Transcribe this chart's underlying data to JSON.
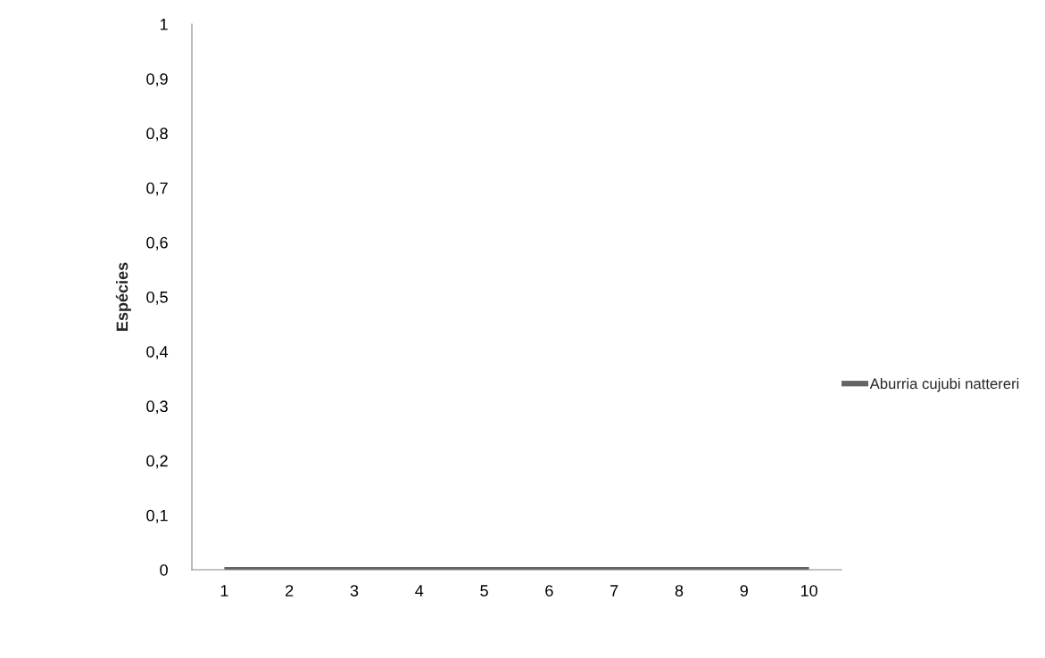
{
  "chart_data": {
    "type": "line",
    "ylabel": "Espécies",
    "categories": [
      "1",
      "2",
      "3",
      "4",
      "5",
      "6",
      "7",
      "8",
      "9",
      "10"
    ],
    "series": [
      {
        "name": "Aburria cujubi nattereri",
        "color": "#646464",
        "values": [
          0,
          0,
          0,
          0,
          0,
          0,
          0,
          0,
          0,
          0
        ]
      }
    ],
    "ylim": [
      0,
      1
    ],
    "yticks": [
      0,
      {
        "value": 0.1,
        "label": "0,1"
      },
      {
        "value": 0.2,
        "label": "0,2"
      },
      {
        "value": 0.3,
        "label": "0,3"
      },
      {
        "value": 0.4,
        "label": "0,4"
      },
      {
        "value": 0.5,
        "label": "0,5"
      },
      {
        "value": 0.6,
        "label": "0,6"
      },
      {
        "value": 0.7,
        "label": "0,7"
      },
      {
        "value": 0.8,
        "label": "0,8"
      },
      {
        "value": 0.9,
        "label": "0,9"
      },
      1
    ],
    "legend": "right",
    "marker": "none",
    "line_style": "solid"
  }
}
